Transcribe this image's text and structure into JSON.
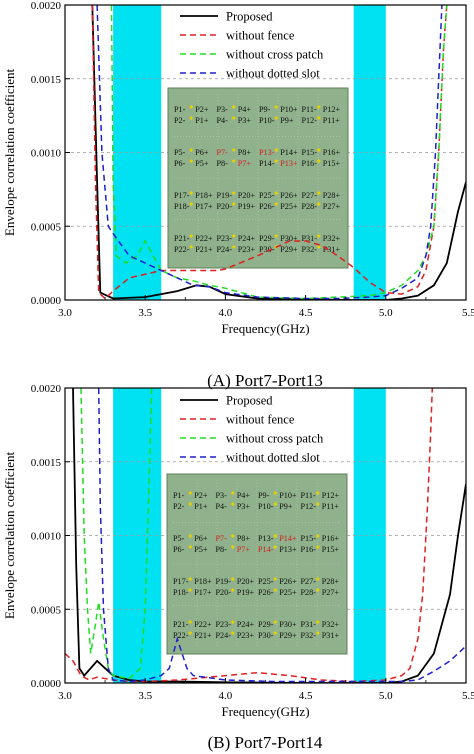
{
  "colors": {
    "band": "#00e1f2",
    "inset_bg": "#8fb18b",
    "inset_border": "#5c7f5a",
    "highlight_port": "#d42020",
    "series": [
      "#000000",
      "#e02020",
      "#22dd22",
      "#1f1fcc"
    ]
  },
  "chart_data": [
    {
      "type": "line",
      "caption": "(A) Port7-Port13",
      "xlabel": "Frequency(GHz)",
      "ylabel": "Envelope correlation coefficient",
      "xlim": [
        3.0,
        5.5
      ],
      "ylim": [
        0,
        0.002
      ],
      "xticks": [
        "3.0",
        "3.5",
        "4.0",
        "4.5",
        "5.0",
        "5.50"
      ],
      "yticks": [
        "0.0000",
        "0.0005",
        "0.0010",
        "0.0015",
        "0.0020"
      ],
      "grid": "horizontal dashed",
      "legend": "top-right",
      "bands": [
        [
          3.3,
          3.6
        ],
        [
          4.8,
          5.0
        ]
      ],
      "series": [
        {
          "name": "Proposed",
          "style": "solid",
          "points": [
            [
              3.17,
              0.002
            ],
            [
              3.2,
              0.0008
            ],
            [
              3.22,
              5e-05
            ],
            [
              3.3,
              1e-05
            ],
            [
              3.5,
              2e-05
            ],
            [
              3.7,
              6e-05
            ],
            [
              3.82,
              0.0001
            ],
            [
              3.9,
              9e-05
            ],
            [
              4.0,
              4e-05
            ],
            [
              4.2,
              1e-05
            ],
            [
              4.5,
              5e-06
            ],
            [
              4.8,
              0.0
            ],
            [
              5.0,
              0.0
            ],
            [
              5.1,
              1e-05
            ],
            [
              5.2,
              3e-05
            ],
            [
              5.3,
              0.0001
            ],
            [
              5.38,
              0.00025
            ],
            [
              5.45,
              0.0006
            ],
            [
              5.5,
              0.0008
            ]
          ]
        },
        {
          "name": "without fence",
          "style": "dashed",
          "points": [
            [
              3.17,
              0.002
            ],
            [
              3.19,
              0.0008
            ],
            [
              3.21,
              5e-05
            ],
            [
              3.25,
              1e-05
            ],
            [
              3.3,
              6e-05
            ],
            [
              3.4,
              0.00015
            ],
            [
              3.6,
              0.0002
            ],
            [
              3.8,
              0.0002
            ],
            [
              3.95,
              0.0002
            ],
            [
              4.0,
              0.00021
            ],
            [
              4.2,
              0.0003
            ],
            [
              4.4,
              0.0004
            ],
            [
              4.5,
              0.0004
            ],
            [
              4.6,
              0.00037
            ],
            [
              4.7,
              0.0003
            ],
            [
              4.8,
              0.00022
            ],
            [
              4.9,
              0.00012
            ],
            [
              5.0,
              5e-05
            ],
            [
              5.1,
              4e-05
            ],
            [
              5.2,
              9e-05
            ],
            [
              5.25,
              0.0002
            ],
            [
              5.3,
              0.0005
            ],
            [
              5.33,
              0.001
            ],
            [
              5.36,
              0.0017
            ],
            [
              5.38,
              0.002
            ]
          ]
        },
        {
          "name": "without cross patch",
          "style": "dashed",
          "points": [
            [
              3.29,
              0.002
            ],
            [
              3.3,
              0.0008
            ],
            [
              3.32,
              0.0003
            ],
            [
              3.38,
              0.00025
            ],
            [
              3.45,
              0.0003
            ],
            [
              3.5,
              0.0004
            ],
            [
              3.56,
              0.00028
            ],
            [
              3.6,
              0.0002
            ],
            [
              3.7,
              0.00015
            ],
            [
              3.8,
              0.00013
            ],
            [
              3.9,
              0.0001
            ],
            [
              4.0,
              8e-05
            ],
            [
              4.2,
              2e-05
            ],
            [
              4.5,
              1e-05
            ],
            [
              4.7,
              2e-05
            ],
            [
              4.9,
              3e-05
            ],
            [
              5.0,
              5e-05
            ],
            [
              5.1,
              0.0001
            ],
            [
              5.2,
              0.0002
            ],
            [
              5.25,
              0.0003
            ],
            [
              5.3,
              0.0005
            ],
            [
              5.33,
              0.001
            ],
            [
              5.36,
              0.0017
            ],
            [
              5.38,
              0.002
            ]
          ]
        },
        {
          "name": "without dotted slot",
          "style": "dashed",
          "points": [
            [
              3.2,
              0.002
            ],
            [
              3.23,
              0.001
            ],
            [
              3.27,
              0.0005
            ],
            [
              3.3,
              0.00045
            ],
            [
              3.4,
              0.0003
            ],
            [
              3.5,
              0.00025
            ],
            [
              3.6,
              0.0002
            ],
            [
              3.7,
              0.00015
            ],
            [
              3.8,
              0.0001
            ],
            [
              3.9,
              9e-05
            ],
            [
              4.0,
              5e-05
            ],
            [
              4.2,
              2e-05
            ],
            [
              4.5,
              1e-05
            ],
            [
              4.7,
              1e-05
            ],
            [
              4.9,
              2e-05
            ],
            [
              5.0,
              3e-05
            ],
            [
              5.1,
              8e-05
            ],
            [
              5.2,
              0.00015
            ],
            [
              5.25,
              0.0003
            ],
            [
              5.28,
              0.0005
            ],
            [
              5.31,
              0.001
            ],
            [
              5.33,
              0.0015
            ],
            [
              5.35,
              0.002
            ]
          ]
        }
      ],
      "inset_highlight": [
        "P7-",
        "P7+",
        "P13-",
        "P13+"
      ]
    },
    {
      "type": "line",
      "caption": "(B) Port7-Port14",
      "xlabel": "Frequency(GHz)",
      "ylabel": "Envelope correlation coefficient",
      "xlim": [
        3.0,
        5.5
      ],
      "ylim": [
        0,
        0.002
      ],
      "xticks": [
        "3.0",
        "3.5",
        "4.0",
        "4.5",
        "5.0",
        "5.50"
      ],
      "yticks": [
        "0.0000",
        "0.0005",
        "0.0010",
        "0.0015",
        "0.0020"
      ],
      "grid": "horizontal dashed",
      "legend": "top-right",
      "bands": [
        [
          3.3,
          3.6
        ],
        [
          4.8,
          5.0
        ]
      ],
      "series": [
        {
          "name": "Proposed",
          "style": "solid",
          "points": [
            [
              3.05,
              0.002
            ],
            [
              3.07,
              0.0008
            ],
            [
              3.09,
              0.0001
            ],
            [
              3.12,
              5e-05
            ],
            [
              3.2,
              0.00015
            ],
            [
              3.25,
              0.0001
            ],
            [
              3.3,
              5e-05
            ],
            [
              3.4,
              2e-05
            ],
            [
              3.5,
              1e-05
            ],
            [
              3.7,
              1e-05
            ],
            [
              4.0,
              5e-06
            ],
            [
              4.5,
              0.0
            ],
            [
              5.0,
              0.0
            ],
            [
              5.1,
              1e-05
            ],
            [
              5.2,
              5e-05
            ],
            [
              5.3,
              0.0002
            ],
            [
              5.4,
              0.0006
            ],
            [
              5.45,
              0.001
            ],
            [
              5.5,
              0.00135
            ]
          ]
        },
        {
          "name": "without fence",
          "style": "dashed",
          "points": [
            [
              3.0,
              0.0002
            ],
            [
              3.05,
              0.00015
            ],
            [
              3.1,
              5e-05
            ],
            [
              3.15,
              2e-05
            ],
            [
              3.2,
              4e-05
            ],
            [
              3.3,
              2e-05
            ],
            [
              3.4,
              1e-05
            ],
            [
              3.5,
              1e-05
            ],
            [
              3.7,
              2e-05
            ],
            [
              3.8,
              3e-05
            ],
            [
              4.0,
              5e-05
            ],
            [
              4.2,
              7e-05
            ],
            [
              4.4,
              5e-05
            ],
            [
              4.6,
              2e-05
            ],
            [
              4.8,
              1e-05
            ],
            [
              5.0,
              2e-05
            ],
            [
              5.1,
              5e-05
            ],
            [
              5.15,
              0.0001
            ],
            [
              5.2,
              0.0003
            ],
            [
              5.23,
              0.0006
            ],
            [
              5.26,
              0.0012
            ],
            [
              5.28,
              0.0017
            ],
            [
              5.29,
              0.002
            ]
          ]
        },
        {
          "name": "without cross patch",
          "style": "dashed",
          "points": [
            [
              3.1,
              0.002
            ],
            [
              3.12,
              0.001
            ],
            [
              3.14,
              0.0005
            ],
            [
              3.16,
              0.0002
            ],
            [
              3.19,
              0.0004
            ],
            [
              3.21,
              0.00055
            ],
            [
              3.24,
              0.0003
            ],
            [
              3.27,
              0.0001
            ],
            [
              3.3,
              5e-05
            ],
            [
              3.4,
              3e-05
            ],
            [
              3.47,
              0.0001
            ],
            [
              3.5,
              0.0005
            ],
            [
              3.52,
              0.0012
            ],
            [
              3.54,
              0.002
            ]
          ]
        },
        {
          "name": "without dotted slot",
          "style": "dashed",
          "points": [
            [
              3.21,
              0.002
            ],
            [
              3.22,
              0.0012
            ],
            [
              3.24,
              0.0005
            ],
            [
              3.27,
              0.0001
            ],
            [
              3.3,
              2e-05
            ],
            [
              3.4,
              1e-05
            ],
            [
              3.5,
              2e-05
            ],
            [
              3.6,
              5e-05
            ],
            [
              3.65,
              0.0001
            ],
            [
              3.7,
              0.0003
            ],
            [
              3.73,
              0.0002
            ],
            [
              3.76,
              0.0001
            ],
            [
              3.8,
              5e-05
            ],
            [
              4.0,
              2e-05
            ],
            [
              4.3,
              1e-05
            ],
            [
              4.6,
              1e-05
            ],
            [
              4.9,
              1e-05
            ],
            [
              5.0,
              1e-05
            ],
            [
              5.1,
              1e-05
            ],
            [
              5.2,
              2e-05
            ],
            [
              5.3,
              8e-05
            ],
            [
              5.4,
              0.00015
            ],
            [
              5.5,
              0.00025
            ]
          ]
        }
      ],
      "inset_highlight": [
        "P7-",
        "P7+",
        "P14-",
        "P14+"
      ]
    }
  ],
  "inset_rows": [
    [
      [
        "P1-",
        "P2+",
        "P3-",
        "P4+",
        "P9-",
        "P10+",
        "P11-",
        "P12+"
      ],
      [
        "P2-",
        "P1+",
        "P4-",
        "P3+",
        "P10-",
        "P9+",
        "P12-",
        "P11+"
      ]
    ],
    [
      [
        "P5-",
        "P6+",
        "P7-",
        "P8+",
        "P13-",
        "P14+",
        "P15-",
        "P16+"
      ],
      [
        "P6-",
        "P5+",
        "P8-",
        "P7+",
        "P14-",
        "P13+",
        "P16-",
        "P15+"
      ]
    ],
    [
      [
        "P17-",
        "P18+",
        "P19-",
        "P20+",
        "P25-",
        "P26+",
        "P27-",
        "P28+"
      ],
      [
        "P18-",
        "P17+",
        "P20-",
        "P19+",
        "P26-",
        "P25+",
        "P28-",
        "P27+"
      ]
    ],
    [
      [
        "P21-",
        "P22+",
        "P23-",
        "P24+",
        "P29-",
        "P30+",
        "P31-",
        "P32+"
      ],
      [
        "P22-",
        "P21+",
        "P24-",
        "P23+",
        "P30-",
        "P29+",
        "P32-",
        "P31+"
      ]
    ]
  ]
}
